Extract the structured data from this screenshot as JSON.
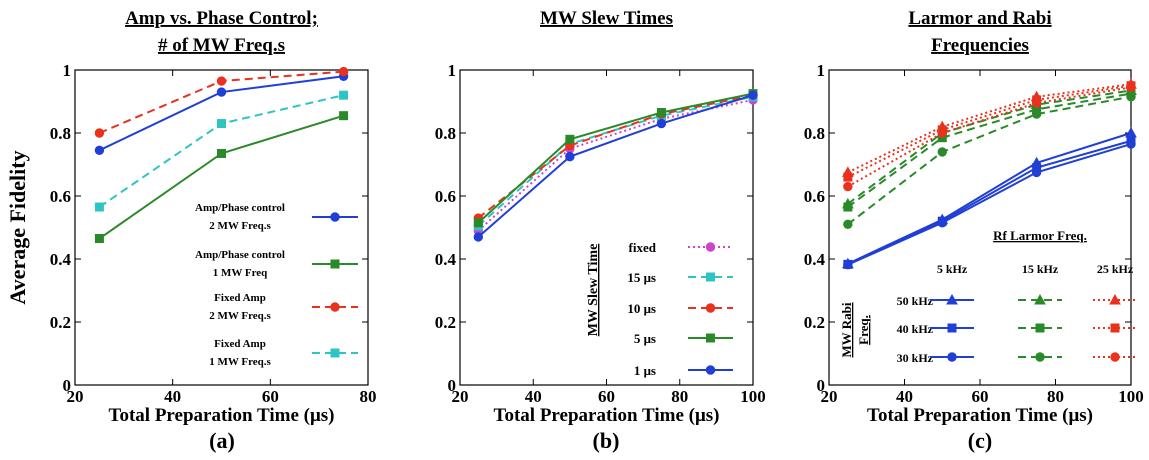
{
  "chart_data": [
    {
      "type": "line",
      "title_lines": [
        "Amp vs. Phase Control;",
        "# of MW Freq.s"
      ],
      "caption": "(a)",
      "xlabel": "Total Preparation Time (μs)",
      "ylabel": "Average Fidelity",
      "xlim": [
        20,
        80
      ],
      "ylim": [
        0,
        1
      ],
      "xticks": [
        "20",
        "40",
        "60",
        "80"
      ],
      "yticks": [
        "0",
        "0.2",
        "0.4",
        "0.6",
        "0.8",
        "1"
      ],
      "legend_placement": "lower-right",
      "series": [
        {
          "label_lines": [
            "Amp/Phase control",
            "2 MW Freq.s"
          ],
          "color": "#1f3fd6",
          "dash": "solid",
          "marker": "circle",
          "points": [
            [
              25,
              0.745
            ],
            [
              50,
              0.93
            ],
            [
              75,
              0.98
            ]
          ]
        },
        {
          "label_lines": [
            "Amp/Phase control",
            "1 MW Freq"
          ],
          "color": "#2a8a2a",
          "dash": "solid",
          "marker": "square",
          "points": [
            [
              25,
              0.465
            ],
            [
              50,
              0.735
            ],
            [
              75,
              0.855
            ]
          ]
        },
        {
          "label_lines": [
            "Fixed Amp",
            "2 MW Freq.s"
          ],
          "color": "#e8321e",
          "dash": "dashed",
          "marker": "circle",
          "points": [
            [
              25,
              0.8
            ],
            [
              50,
              0.965
            ],
            [
              75,
              0.995
            ]
          ]
        },
        {
          "label_lines": [
            "Fixed Amp",
            "1 MW Freq.s"
          ],
          "color": "#2fc4c4",
          "dash": "dashed",
          "marker": "square",
          "points": [
            [
              25,
              0.565
            ],
            [
              50,
              0.83
            ],
            [
              75,
              0.92
            ]
          ]
        }
      ]
    },
    {
      "type": "line",
      "title_lines": [
        "MW Slew Times"
      ],
      "caption": "(b)",
      "xlabel": "Total Preparation Time (μs)",
      "xlim": [
        20,
        100
      ],
      "ylim": [
        0,
        1
      ],
      "xticks": [
        "20",
        "40",
        "60",
        "80",
        "100"
      ],
      "yticks": [
        "0",
        "0.2",
        "0.4",
        "0.6",
        "0.8",
        "1"
      ],
      "legend_title": "MW Slew Time",
      "legend_placement": "lower-right",
      "series": [
        {
          "label": "fixed",
          "color": "#cc44cc",
          "dash": "dotted",
          "marker": "circle",
          "points": [
            [
              25,
              0.49
            ],
            [
              50,
              0.75
            ],
            [
              75,
              0.845
            ],
            [
              100,
              0.905
            ]
          ]
        },
        {
          "label": "15 μs",
          "color": "#2fc4c4",
          "dash": "dashed",
          "marker": "square",
          "points": [
            [
              25,
              0.505
            ],
            [
              50,
              0.765
            ],
            [
              75,
              0.855
            ],
            [
              100,
              0.915
            ]
          ]
        },
        {
          "label": "10 μs",
          "color": "#e8321e",
          "dash": "dashed",
          "marker": "circle",
          "points": [
            [
              25,
              0.53
            ],
            [
              50,
              0.76
            ],
            [
              75,
              0.86
            ],
            [
              100,
              0.92
            ]
          ]
        },
        {
          "label": "5 μs",
          "color": "#2a8a2a",
          "dash": "solid",
          "marker": "square",
          "points": [
            [
              25,
              0.515
            ],
            [
              50,
              0.78
            ],
            [
              75,
              0.865
            ],
            [
              100,
              0.925
            ]
          ]
        },
        {
          "label": "1 μs",
          "color": "#1f3fd6",
          "dash": "solid",
          "marker": "circle",
          "points": [
            [
              25,
              0.47
            ],
            [
              50,
              0.725
            ],
            [
              75,
              0.83
            ],
            [
              100,
              0.92
            ]
          ]
        }
      ]
    },
    {
      "type": "line",
      "title_lines": [
        "Larmor and Rabi",
        "Frequencies"
      ],
      "caption": "(c)",
      "xlabel": "Total Preparation Time (μs)",
      "xlim": [
        20,
        100
      ],
      "ylim": [
        0,
        1
      ],
      "xticks": [
        "20",
        "40",
        "60",
        "80",
        "100"
      ],
      "yticks": [
        "0",
        "0.2",
        "0.4",
        "0.6",
        "0.8",
        "1"
      ],
      "legend_title": "Rf Larmor Freq.",
      "legend_columns": [
        "5 kHz",
        "15 kHz",
        "25 kHz"
      ],
      "legend_row_title_lines": [
        "MW Rabi",
        "Freq."
      ],
      "legend_rows": [
        "50 kHz",
        "40 kHz",
        "30 kHz"
      ],
      "legend_placement": "lower-right",
      "series": [
        {
          "larmor": "5 kHz",
          "rabi": "50 kHz",
          "color": "#1f3fd6",
          "dash": "solid",
          "marker": "triangle",
          "points": [
            [
              25,
              0.385
            ],
            [
              50,
              0.525
            ],
            [
              75,
              0.705
            ],
            [
              100,
              0.8
            ]
          ]
        },
        {
          "larmor": "5 kHz",
          "rabi": "40 kHz",
          "color": "#1f3fd6",
          "dash": "solid",
          "marker": "square",
          "points": [
            [
              25,
              0.383
            ],
            [
              50,
              0.52
            ],
            [
              75,
              0.69
            ],
            [
              100,
              0.775
            ]
          ]
        },
        {
          "larmor": "5 kHz",
          "rabi": "30 kHz",
          "color": "#1f3fd6",
          "dash": "solid",
          "marker": "circle",
          "points": [
            [
              25,
              0.382
            ],
            [
              50,
              0.515
            ],
            [
              75,
              0.675
            ],
            [
              100,
              0.765
            ]
          ]
        },
        {
          "larmor": "15 kHz",
          "rabi": "50 kHz",
          "color": "#2a8a2a",
          "dash": "dashed",
          "marker": "triangle",
          "points": [
            [
              25,
              0.575
            ],
            [
              50,
              0.8
            ],
            [
              75,
              0.89
            ],
            [
              100,
              0.935
            ]
          ]
        },
        {
          "larmor": "15 kHz",
          "rabi": "40 kHz",
          "color": "#2a8a2a",
          "dash": "dashed",
          "marker": "square",
          "points": [
            [
              25,
              0.565
            ],
            [
              50,
              0.785
            ],
            [
              75,
              0.875
            ],
            [
              100,
              0.925
            ]
          ]
        },
        {
          "larmor": "15 kHz",
          "rabi": "30 kHz",
          "color": "#2a8a2a",
          "dash": "dashed",
          "marker": "circle",
          "points": [
            [
              25,
              0.51
            ],
            [
              50,
              0.74
            ],
            [
              75,
              0.86
            ],
            [
              100,
              0.915
            ]
          ]
        },
        {
          "larmor": "25 kHz",
          "rabi": "50 kHz",
          "color": "#e8321e",
          "dash": "dotted",
          "marker": "triangle",
          "points": [
            [
              25,
              0.675
            ],
            [
              50,
              0.82
            ],
            [
              75,
              0.915
            ],
            [
              100,
              0.955
            ]
          ]
        },
        {
          "larmor": "25 kHz",
          "rabi": "40 kHz",
          "color": "#e8321e",
          "dash": "dotted",
          "marker": "square",
          "points": [
            [
              25,
              0.66
            ],
            [
              50,
              0.81
            ],
            [
              75,
              0.905
            ],
            [
              100,
              0.95
            ]
          ]
        },
        {
          "larmor": "25 kHz",
          "rabi": "30 kHz",
          "color": "#e8321e",
          "dash": "dotted",
          "marker": "circle",
          "points": [
            [
              25,
              0.63
            ],
            [
              50,
              0.8
            ],
            [
              75,
              0.895
            ],
            [
              100,
              0.945
            ]
          ]
        }
      ]
    }
  ]
}
